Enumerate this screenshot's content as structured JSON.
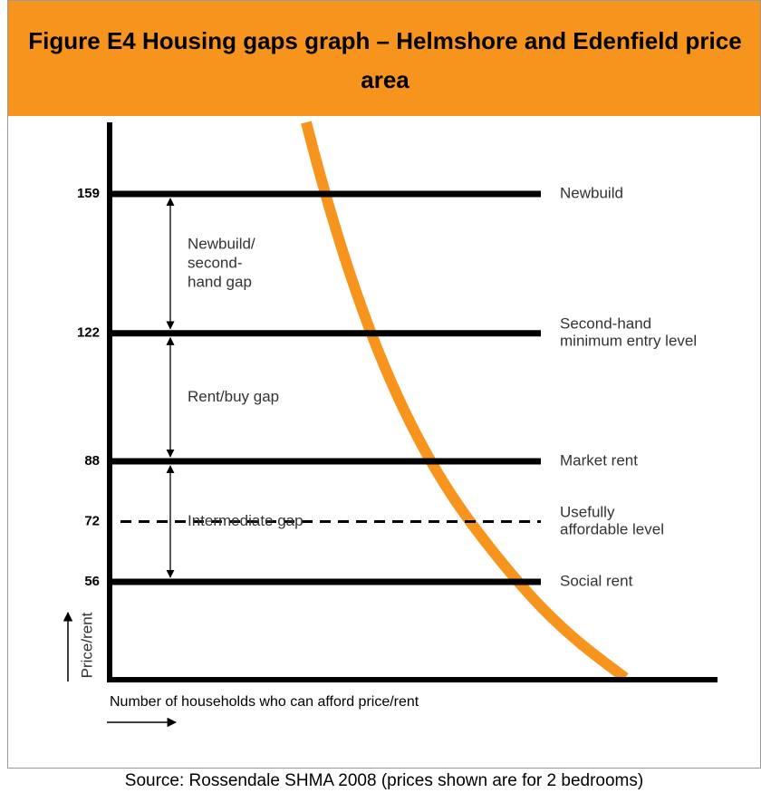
{
  "chart_data": {
    "type": "gaps",
    "title": "Figure E4 Housing gaps graph – Helmshore and Edenfield price area",
    "ylabel": "Price/rent",
    "xlabel": "Number of households who can afford price/rent",
    "ylim": [
      30,
      178
    ],
    "levels": [
      {
        "value": 159,
        "label": [
          "Newbuild"
        ],
        "style": "solid"
      },
      {
        "value": 122,
        "label": [
          "Second-hand",
          "minimum entry level"
        ],
        "style": "solid"
      },
      {
        "value": 88,
        "label": [
          "Market rent"
        ],
        "style": "solid"
      },
      {
        "value": 72,
        "label": [
          "Usefully",
          "affordable level"
        ],
        "style": "dashed"
      },
      {
        "value": 56,
        "label": [
          "Social rent"
        ],
        "style": "solid"
      }
    ],
    "gaps": [
      [
        "Newbuild/",
        "second-",
        "hand gap"
      ],
      [
        "Rent/buy gap"
      ],
      [
        "Intermediate gap"
      ]
    ],
    "curve_color": "#f7941d",
    "source": "Source: Rossendale SHMA 2008 (prices shown are for 2 bedrooms)"
  }
}
